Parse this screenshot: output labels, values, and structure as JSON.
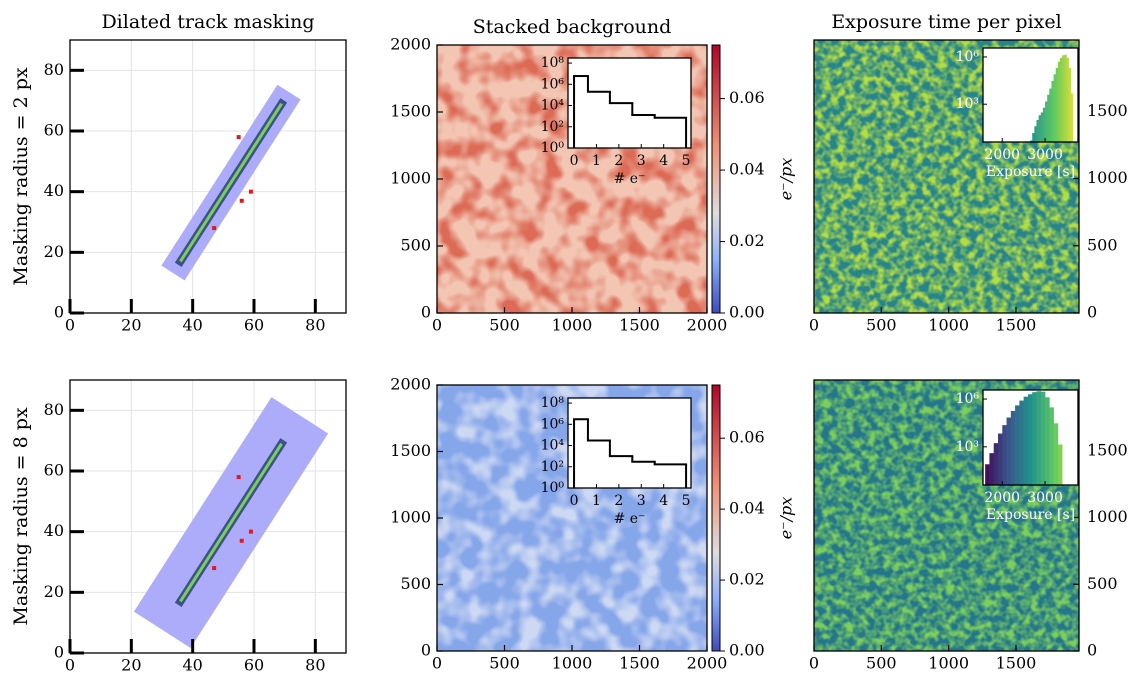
{
  "chart_data": [
    {
      "type": "mask",
      "title": "Dilated track masking",
      "ylabel": "Masking radius = 2 px",
      "xlim": [
        0,
        90
      ],
      "ylim": [
        0,
        90
      ],
      "xticks": [
        0,
        20,
        40,
        60,
        80
      ],
      "yticks": [
        0,
        20,
        40,
        60,
        80
      ],
      "grid": true,
      "track": {
        "x": [
          36,
          69
        ],
        "y": [
          17,
          69
        ]
      },
      "dilation": 3.5,
      "points": {
        "x": [
          55,
          59,
          56,
          47
        ],
        "y": [
          58,
          40,
          37,
          28
        ]
      },
      "colors": [
        "#acacfa",
        "#3b528b",
        "#7ad151",
        "#e8151b"
      ]
    },
    {
      "type": "image",
      "title": "Stacked background",
      "cmap": "coolwarm",
      "xlim": [
        0,
        2000
      ],
      "ylim": [
        0,
        2000
      ],
      "xticks": [
        0,
        500,
        1000,
        1500,
        2000
      ],
      "yticks": [
        0,
        500,
        1000,
        1500,
        2000
      ],
      "colors": [
        "#f2c6b3",
        "#dc6a55"
      ],
      "colorbar": {
        "label": "e⁻/px",
        "cmap": "coolwarm",
        "lim": [
          0,
          0.075
        ],
        "ticks": [
          {
            "value": 0,
            "label": "0.00"
          },
          {
            "value": 0.02,
            "label": "0.02"
          },
          {
            "value": 0.04,
            "label": "0.04"
          },
          {
            "value": 0.06,
            "label": "0.06"
          }
        ]
      },
      "inset": {
        "type": "step",
        "xlabel": "# e⁻",
        "bins": [
          0,
          0.62,
          1.6,
          2.6,
          3.6,
          5
        ],
        "values": [
          6000000,
          200000,
          17000,
          1300,
          700
        ],
        "xlim": [
          -0.27,
          5.22
        ],
        "ylim": [
          1,
          300000000
        ],
        "log": true,
        "xticks": [
          0,
          1,
          2,
          3,
          4,
          5
        ],
        "yticks": [
          {
            "value": 1,
            "label": "10⁰"
          },
          {
            "value": 100,
            "label": "10²"
          },
          {
            "value": 10000,
            "label": "10⁴"
          },
          {
            "value": 1000000,
            "label": "10⁶"
          },
          {
            "value": 100000000,
            "label": "10⁸"
          }
        ],
        "color": "#000000"
      }
    },
    {
      "type": "image",
      "title": "Exposure time per pixel",
      "cmap": "viridis",
      "yaxis": "right",
      "xlim": [
        0,
        1968
      ],
      "ylim": [
        0,
        2030
      ],
      "xticks": [
        0,
        500,
        1000,
        1500
      ],
      "yticks": [
        0,
        500,
        1000,
        1500
      ],
      "colors": [
        "#26848c",
        "#b5dd40"
      ],
      "inset": {
        "type": "hist",
        "xlabel": "Exposure [s]",
        "bins": [
          2650,
          2700,
          2750,
          2800,
          2850,
          2900,
          2950,
          3000,
          3050,
          3100,
          3150,
          3200,
          3250,
          3300,
          3350,
          3400,
          3450,
          3500,
          3550,
          3600,
          3650
        ],
        "values": [
          5,
          15,
          40,
          100,
          200,
          300,
          600,
          1500,
          4000,
          10000,
          30000,
          80000,
          200000,
          500000,
          900000,
          1300000,
          1400000,
          900000,
          200000,
          5000
        ],
        "xlim": [
          1550,
          3770
        ],
        "ylim": [
          4,
          3700000
        ],
        "log": true,
        "xticks": [
          2000,
          3000
        ],
        "yticks": [
          {
            "value": 1000,
            "label": "10³"
          },
          {
            "value": 1000000,
            "label": "10⁶"
          }
        ],
        "cmap": "viridis",
        "label_color": "#ffffff"
      }
    },
    {
      "type": "mask",
      "ylabel": "Masking radius = 8 px",
      "xlim": [
        0,
        90
      ],
      "ylim": [
        0,
        90
      ],
      "xticks": [
        0,
        20,
        40,
        60,
        80
      ],
      "yticks": [
        0,
        20,
        40,
        60,
        80
      ],
      "grid": true,
      "track": {
        "x": [
          36,
          69
        ],
        "y": [
          17,
          69
        ]
      },
      "dilation": 10,
      "points": {
        "x": [
          55,
          59,
          56,
          47
        ],
        "y": [
          58,
          40,
          37,
          28
        ]
      },
      "colors": [
        "#acacfa",
        "#3b528b",
        "#7ad151",
        "#e8151b"
      ]
    },
    {
      "type": "image",
      "cmap": "coolwarm",
      "xlim": [
        0,
        2000
      ],
      "ylim": [
        0,
        2000
      ],
      "xticks": [
        0,
        500,
        1000,
        1500,
        2000
      ],
      "yticks": [
        0,
        500,
        1000,
        1500,
        2000
      ],
      "colors": [
        "#86a6ea",
        "#cdd9f3"
      ],
      "colorbar": {
        "label": "e⁻/px",
        "cmap": "coolwarm",
        "lim": [
          0,
          0.075
        ],
        "ticks": [
          {
            "value": 0,
            "label": "0.00"
          },
          {
            "value": 0.02,
            "label": "0.02"
          },
          {
            "value": 0.04,
            "label": "0.04"
          },
          {
            "value": 0.06,
            "label": "0.06"
          }
        ]
      },
      "inset": {
        "type": "step",
        "xlabel": "# e⁻",
        "bins": [
          0,
          0.62,
          1.6,
          2.6,
          3.6,
          5
        ],
        "values": [
          3000000,
          30000,
          1000,
          300,
          170
        ],
        "xlim": [
          -0.27,
          5.22
        ],
        "ylim": [
          1,
          300000000
        ],
        "log": true,
        "xticks": [
          0,
          1,
          2,
          3,
          4,
          5
        ],
        "yticks": [
          {
            "value": 1,
            "label": "10⁰"
          },
          {
            "value": 100,
            "label": "10²"
          },
          {
            "value": 10000,
            "label": "10⁴"
          },
          {
            "value": 1000000,
            "label": "10⁶"
          },
          {
            "value": 100000000,
            "label": "10⁸"
          }
        ],
        "color": "#000000"
      }
    },
    {
      "type": "image",
      "cmap": "viridis",
      "yaxis": "right",
      "xlim": [
        0,
        1968
      ],
      "ylim": [
        0,
        2030
      ],
      "xticks": [
        0,
        500,
        1000,
        1500
      ],
      "yticks": [
        0,
        500,
        1000,
        1500
      ],
      "colors": [
        "#24768c",
        "#7ccf5a"
      ],
      "inset": {
        "type": "hist",
        "xlabel": "Exposure [s]",
        "bins": [
          1600,
          1700,
          1800,
          1900,
          2000,
          2100,
          2200,
          2300,
          2400,
          2500,
          2600,
          2700,
          2800,
          2900,
          3000,
          3100,
          3200,
          3300,
          3400
        ],
        "values": [
          80,
          400,
          1700,
          6800,
          23000,
          69000,
          180000,
          400000,
          800000,
          1400000,
          2000000,
          2700000,
          3100000,
          2900000,
          1300000,
          300000,
          30000,
          1400
        ],
        "xlim": [
          1550,
          3770
        ],
        "ylim": [
          4,
          3700000
        ],
        "log": true,
        "xticks": [
          2000,
          3000
        ],
        "yticks": [
          {
            "value": 1000,
            "label": "10³"
          },
          {
            "value": 1000000,
            "label": "10⁶"
          }
        ],
        "cmap": "viridis",
        "label_color": "#ffffff"
      }
    }
  ]
}
